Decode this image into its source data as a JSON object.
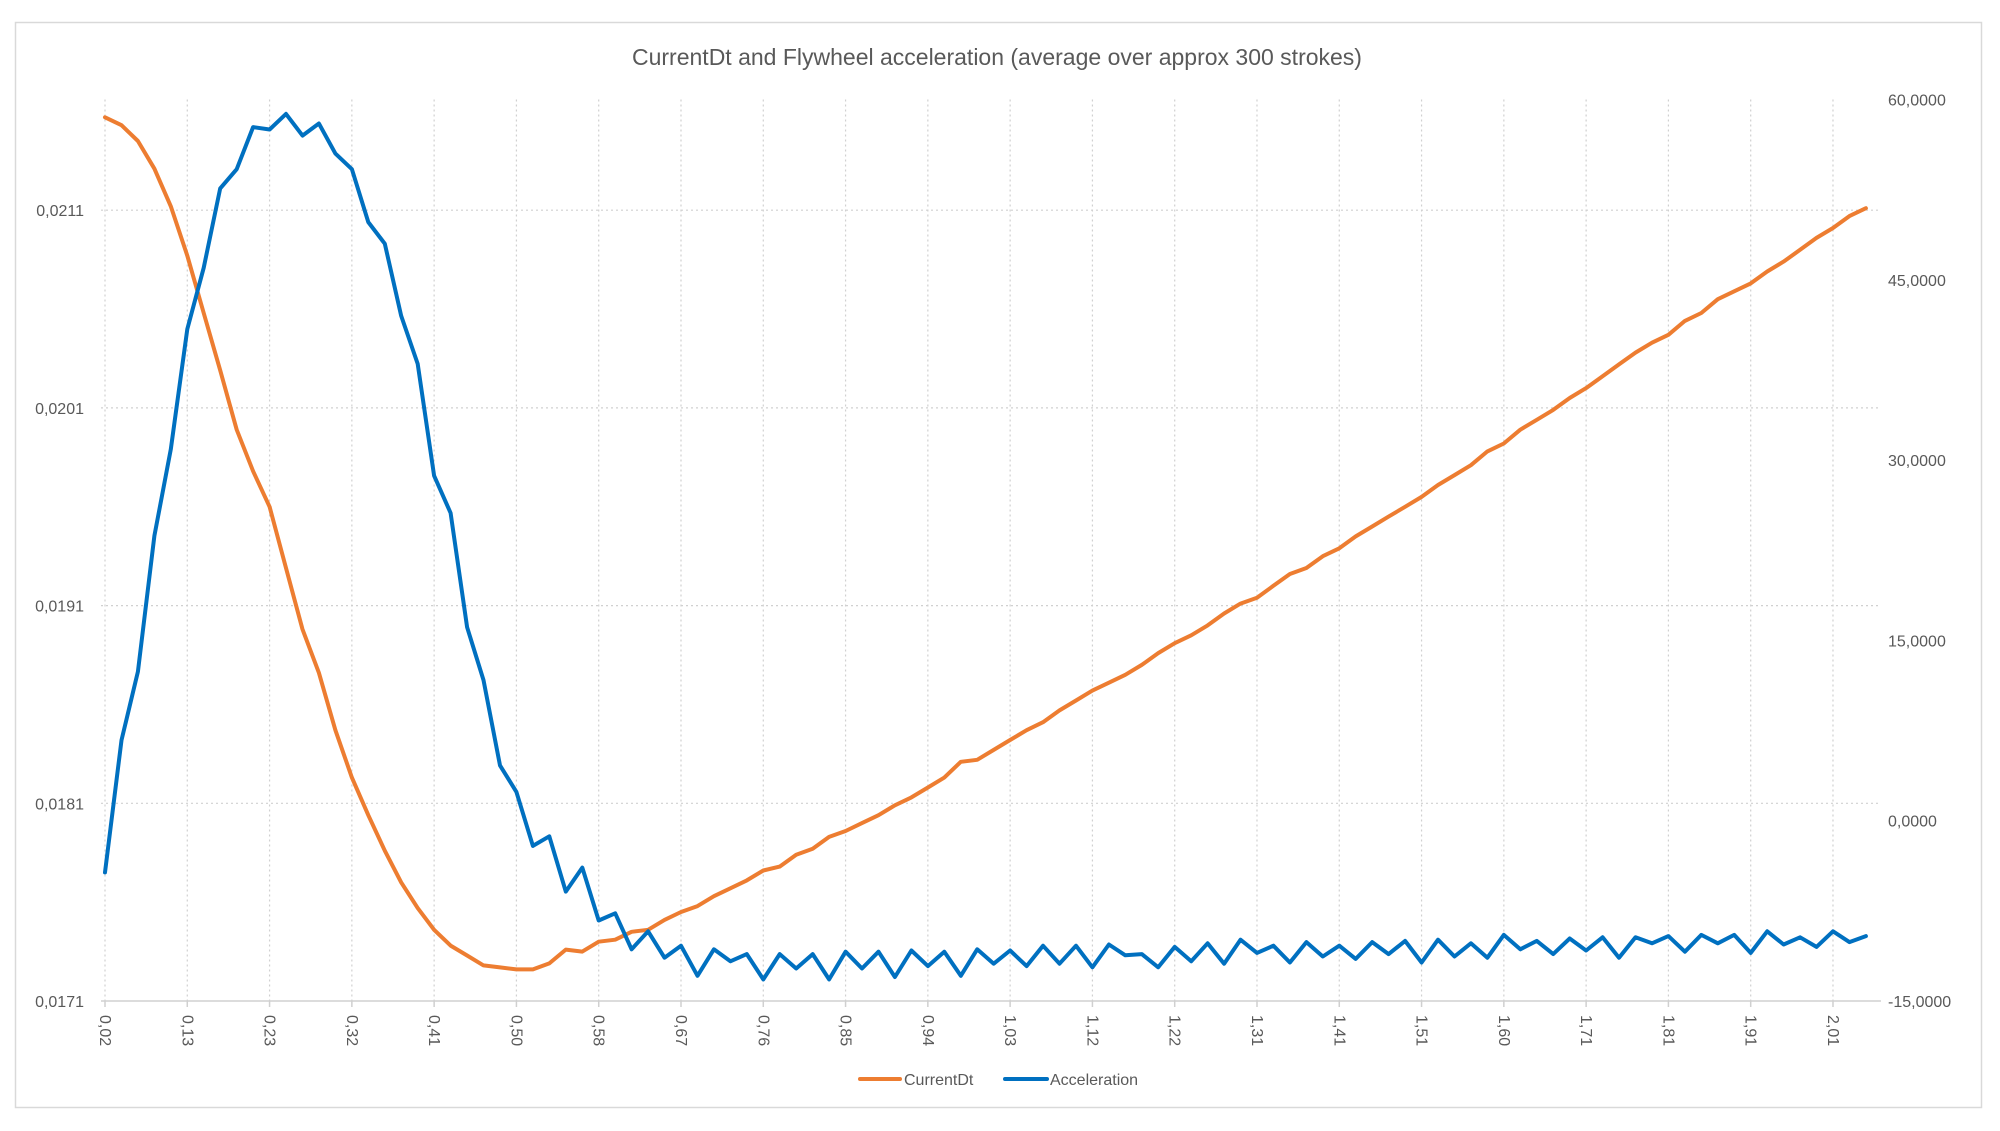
{
  "chart_data": {
    "type": "line",
    "title": "CurrentDt and Flywheel acceleration (average over approx 300 strokes)",
    "x_tick_labels": [
      "0,02",
      "0,13",
      "0,23",
      "0,32",
      "0,41",
      "0,50",
      "0,58",
      "0,67",
      "0,76",
      "0,85",
      "0,94",
      "1,03",
      "1,12",
      "1,22",
      "1,31",
      "1,41",
      "1,51",
      "1,60",
      "1,71",
      "1,81",
      "1,91",
      "2,01"
    ],
    "y_left": {
      "min": 0.0171,
      "max": 0.02166,
      "ticks": [
        0.0171,
        0.0181,
        0.0191,
        0.0201,
        0.0211
      ],
      "tick_labels": [
        "0,0171",
        "0,0181",
        "0,0191",
        "0,0201",
        "0,0211"
      ]
    },
    "y_right": {
      "min": -15,
      "max": 60,
      "ticks": [
        -15,
        0,
        15,
        30,
        45,
        60
      ],
      "tick_labels": [
        "-15,0000",
        "0,0000",
        "15,0000",
        "30,0000",
        "45,0000",
        "60,0000"
      ]
    },
    "grid": {
      "horizontal": true,
      "vertical": true,
      "style": "dotted"
    },
    "legend": {
      "placement": "bottom"
    },
    "series": [
      {
        "name": "CurrentDt",
        "axis": "left",
        "color": "#ED7D31",
        "values": [
          0.02157,
          0.02153,
          0.02145,
          0.02131,
          0.02112,
          0.02087,
          0.02058,
          0.02029,
          0.01999,
          0.01978,
          0.0196,
          0.01929,
          0.01898,
          0.01876,
          0.01847,
          0.01823,
          0.01804,
          0.01786,
          0.0177,
          0.01757,
          0.01746,
          0.01738,
          0.01733,
          0.01728,
          0.01727,
          0.01726,
          0.01726,
          0.01729,
          0.01736,
          0.01735,
          0.0174,
          0.01741,
          0.01745,
          0.01746,
          0.01751,
          0.01755,
          0.01758,
          0.01763,
          0.01767,
          0.01771,
          0.01776,
          0.01778,
          0.01784,
          0.01787,
          0.01793,
          0.01796,
          0.018,
          0.01804,
          0.01809,
          0.01813,
          0.01818,
          0.01823,
          0.01831,
          0.01832,
          0.01837,
          0.01842,
          0.01847,
          0.01851,
          0.01857,
          0.01862,
          0.01867,
          0.01871,
          0.01875,
          0.0188,
          0.01886,
          0.01891,
          0.01895,
          0.019,
          0.01906,
          0.01911,
          0.01914,
          0.0192,
          0.01926,
          0.01929,
          0.01935,
          0.01939,
          0.01945,
          0.0195,
          0.01955,
          0.0196,
          0.01965,
          0.01971,
          0.01976,
          0.01981,
          0.01988,
          0.01992,
          0.01999,
          0.02004,
          0.02009,
          0.02015,
          0.0202,
          0.02026,
          0.02032,
          0.02038,
          0.02043,
          0.02047,
          0.02054,
          0.02058,
          0.02065,
          0.02069,
          0.02073,
          0.02079,
          0.02084,
          0.0209,
          0.02096,
          0.02101,
          0.02107,
          0.02111
        ]
      },
      {
        "name": "Acceleration",
        "axis": "right",
        "color": "#0070C0",
        "values": [
          -4.3,
          6.7,
          12.4,
          23.7,
          30.9,
          40.9,
          46.0,
          52.6,
          54.2,
          57.7,
          57.5,
          58.8,
          57.0,
          58.0,
          55.5,
          54.2,
          49.8,
          48.0,
          42.0,
          38.0,
          28.7,
          25.6,
          16.1,
          11.7,
          4.6,
          2.4,
          -2.1,
          -1.3,
          -5.9,
          -3.9,
          -8.3,
          -7.7,
          -10.7,
          -9.2,
          -11.4,
          -10.4,
          -12.9,
          -10.7,
          -11.7,
          -11.1,
          -13.2,
          -11.1,
          -12.3,
          -11.1,
          -13.2,
          -10.9,
          -12.3,
          -10.9,
          -13.0,
          -10.8,
          -12.1,
          -10.9,
          -12.9,
          -10.7,
          -11.9,
          -10.8,
          -12.1,
          -10.4,
          -11.9,
          -10.4,
          -12.2,
          -10.3,
          -11.2,
          -11.1,
          -12.2,
          -10.5,
          -11.7,
          -10.2,
          -11.9,
          -9.9,
          -11.0,
          -10.4,
          -11.8,
          -10.1,
          -11.3,
          -10.4,
          -11.5,
          -10.1,
          -11.1,
          -10.0,
          -11.8,
          -9.9,
          -11.3,
          -10.2,
          -11.4,
          -9.5,
          -10.7,
          -10.0,
          -11.1,
          -9.8,
          -10.8,
          -9.7,
          -11.4,
          -9.7,
          -10.2,
          -9.6,
          -10.9,
          -9.5,
          -10.2,
          -9.5,
          -11.0,
          -9.2,
          -10.3,
          -9.7,
          -10.5,
          -9.2,
          -10.1,
          -9.6
        ]
      }
    ]
  }
}
